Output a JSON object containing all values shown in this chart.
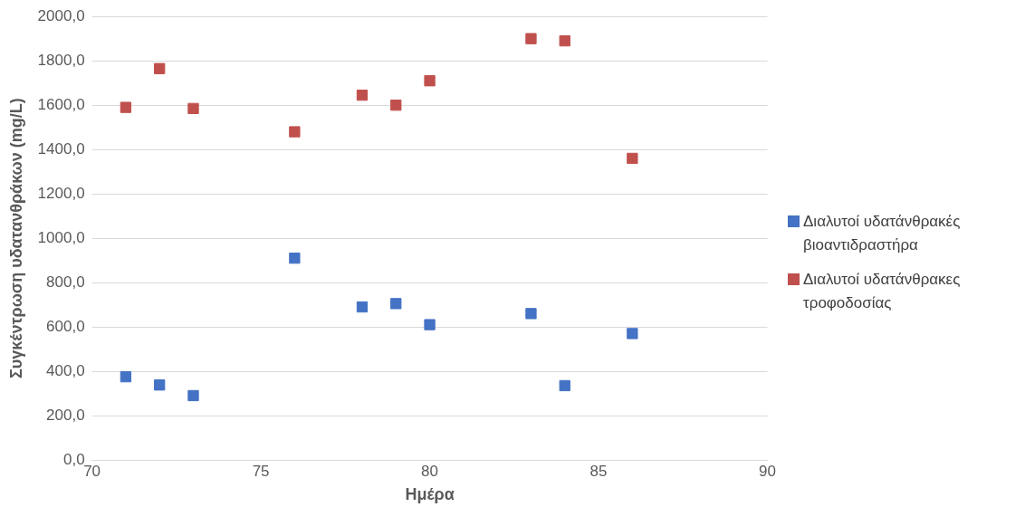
{
  "chart_data": {
    "type": "scatter",
    "xlabel": "Ημέρα",
    "ylabel": "Συγκέντρωση υδατανθράκων (mg/L)",
    "xlim": [
      70,
      90
    ],
    "xticks": [
      70,
      75,
      80,
      85,
      90
    ],
    "ylim": [
      0,
      2000
    ],
    "yticks": [
      {
        "value": 0,
        "label": "0,0"
      },
      {
        "value": 200,
        "label": "200,0"
      },
      {
        "value": 400,
        "label": "400,0"
      },
      {
        "value": 600,
        "label": "600,0"
      },
      {
        "value": 800,
        "label": "800,0"
      },
      {
        "value": 1000,
        "label": "1000,0"
      },
      {
        "value": 1200,
        "label": "1200,0"
      },
      {
        "value": 1400,
        "label": "1400,0"
      },
      {
        "value": 1600,
        "label": "1600,0"
      },
      {
        "value": 1800,
        "label": "1800,0"
      },
      {
        "value": 2000,
        "label": "2000,0"
      }
    ],
    "grid": "y",
    "legend": "right",
    "marker": "square",
    "series": [
      {
        "name": "Διαλυτοί υδατάνθρακές βιοαντιδραστήρα",
        "color": "#4472c4",
        "x": [
          71,
          72,
          73,
          76,
          78,
          79,
          80,
          83,
          84,
          86
        ],
        "values": [
          375,
          338,
          290,
          910,
          690,
          705,
          610,
          660,
          335,
          570
        ]
      },
      {
        "name": "Διαλυτοί υδατάνθρακες τροφοδοσίας",
        "color": "#c0504d",
        "x": [
          71,
          72,
          73,
          76,
          78,
          79,
          80,
          83,
          84,
          86
        ],
        "values": [
          1590,
          1765,
          1585,
          1480,
          1645,
          1600,
          1710,
          1900,
          1890,
          1360
        ]
      }
    ]
  }
}
